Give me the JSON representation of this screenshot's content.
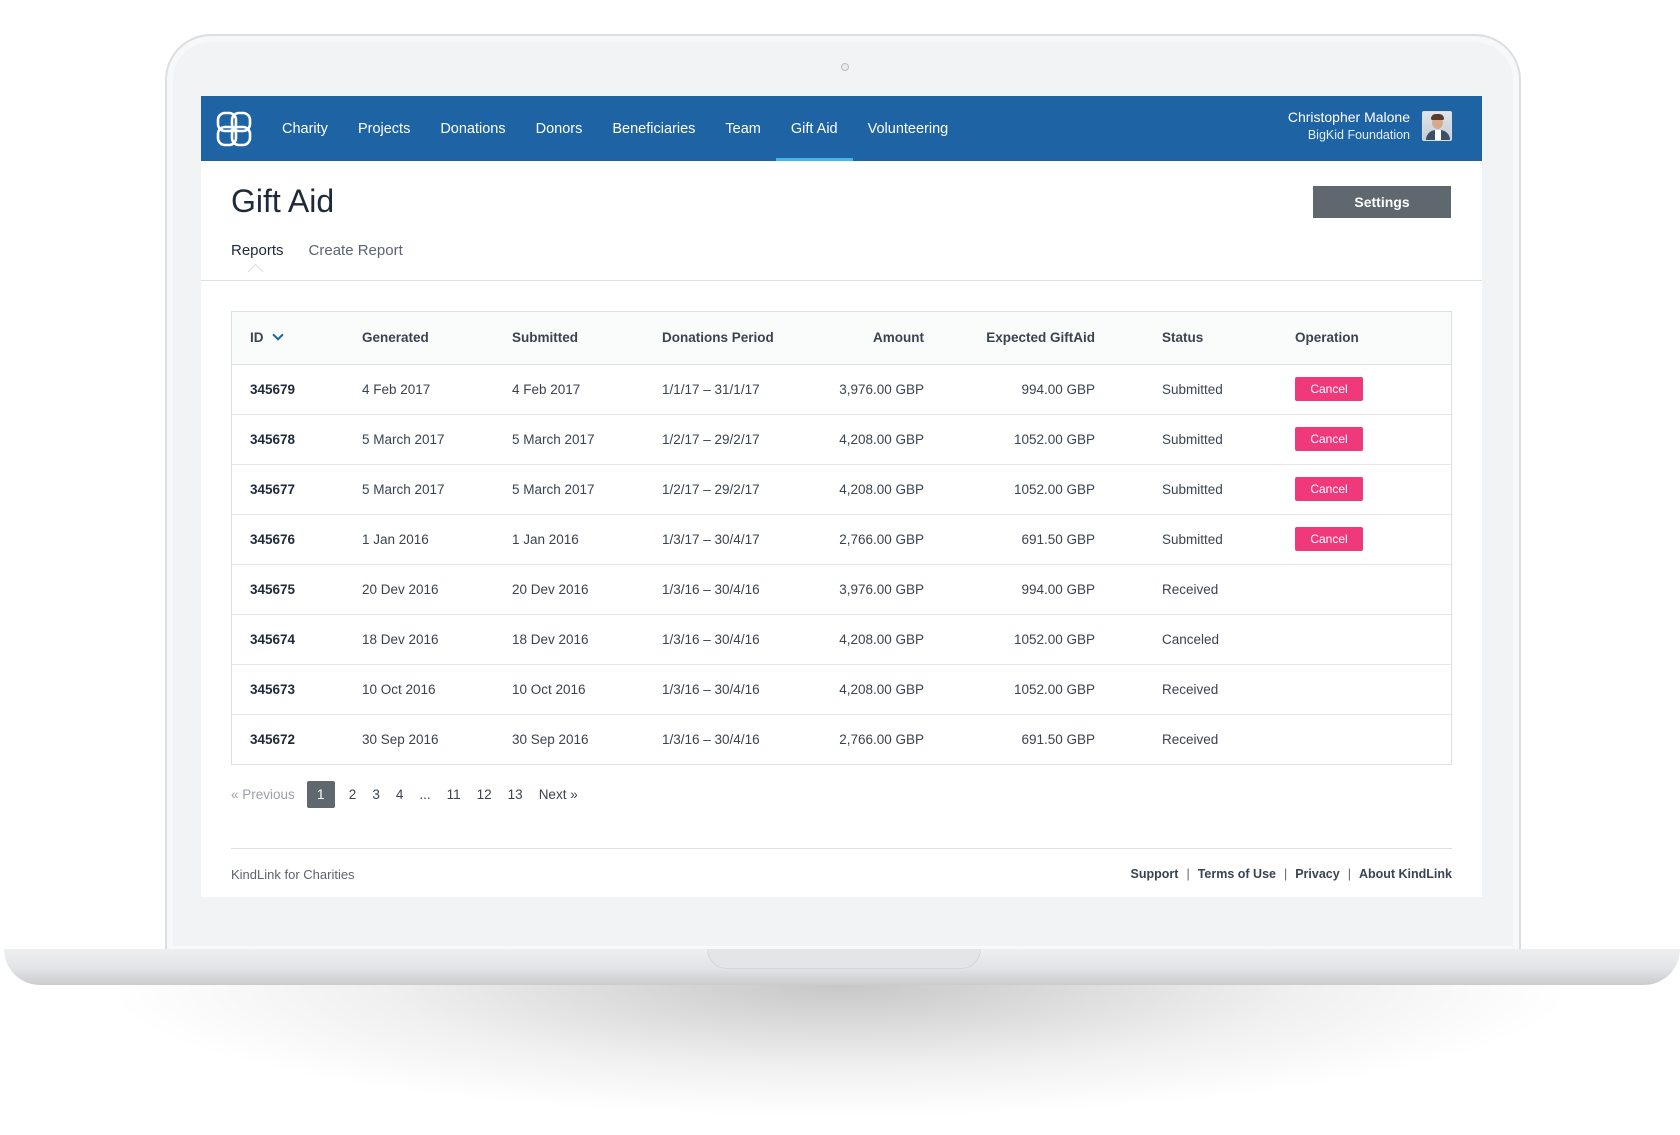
{
  "brand": {
    "accent": "#1e64a5",
    "active_indicator": "#3fb7ea",
    "cancel_color": "#f0397a",
    "button_gray": "#5f676f"
  },
  "nav": {
    "items": [
      {
        "label": "Charity"
      },
      {
        "label": "Projects"
      },
      {
        "label": "Donations"
      },
      {
        "label": "Donors"
      },
      {
        "label": "Beneficiaries"
      },
      {
        "label": "Team"
      },
      {
        "label": "Gift Aid",
        "active": true
      },
      {
        "label": "Volunteering"
      }
    ],
    "user": {
      "name": "Christopher Malone",
      "organization": "BigKid Foundation"
    }
  },
  "page": {
    "title": "Gift Aid",
    "settings_label": "Settings",
    "tabs": [
      {
        "label": "Reports",
        "active": true
      },
      {
        "label": "Create Report"
      }
    ]
  },
  "table": {
    "columns": [
      "ID",
      "Generated",
      "Submitted",
      "Donations Period",
      "Amount",
      "Expected GiftAid",
      "Status",
      "Operation"
    ],
    "cancel_label": "Cancel",
    "rows": [
      {
        "id": "345679",
        "generated": "4 Feb 2017",
        "submitted": "4 Feb 2017",
        "period": "1/1/17 – 31/1/17",
        "amount": "3,976.00 GBP",
        "expected": "994.00 GBP",
        "status": "Submitted",
        "can_cancel": true
      },
      {
        "id": "345678",
        "generated": "5 March 2017",
        "submitted": "5 March 2017",
        "period": "1/2/17 – 29/2/17",
        "amount": "4,208.00 GBP",
        "expected": "1052.00 GBP",
        "status": "Submitted",
        "can_cancel": true
      },
      {
        "id": "345677",
        "generated": "5 March 2017",
        "submitted": "5 March 2017",
        "period": "1/2/17 – 29/2/17",
        "amount": "4,208.00 GBP",
        "expected": "1052.00 GBP",
        "status": "Submitted",
        "can_cancel": true
      },
      {
        "id": "345676",
        "generated": "1 Jan 2016",
        "submitted": "1 Jan 2016",
        "period": "1/3/17 – 30/4/17",
        "amount": "2,766.00 GBP",
        "expected": "691.50 GBP",
        "status": "Submitted",
        "can_cancel": true
      },
      {
        "id": "345675",
        "generated": "20 Dev 2016",
        "submitted": "20 Dev 2016",
        "period": "1/3/16 – 30/4/16",
        "amount": "3,976.00 GBP",
        "expected": "994.00 GBP",
        "status": "Received",
        "can_cancel": false
      },
      {
        "id": "345674",
        "generated": "18 Dev 2016",
        "submitted": "18 Dev 2016",
        "period": "1/3/16 – 30/4/16",
        "amount": "4,208.00 GBP",
        "expected": "1052.00 GBP",
        "status": "Canceled",
        "can_cancel": false
      },
      {
        "id": "345673",
        "generated": "10 Oct 2016",
        "submitted": "10 Oct 2016",
        "period": "1/3/16 – 30/4/16",
        "amount": "4,208.00 GBP",
        "expected": "1052.00 GBP",
        "status": "Received",
        "can_cancel": false
      },
      {
        "id": "345672",
        "generated": "30 Sep 2016",
        "submitted": "30 Sep 2016",
        "period": "1/3/16 – 30/4/16",
        "amount": "2,766.00 GBP",
        "expected": "691.50 GBP",
        "status": "Received",
        "can_cancel": false
      }
    ]
  },
  "pagination": {
    "previous": "« Previous",
    "pages": [
      "1",
      "2",
      "3",
      "4",
      "...",
      "11",
      "12",
      "13"
    ],
    "current": "1",
    "next": "Next »"
  },
  "footer": {
    "left": "KindLink for Charities",
    "links": [
      "Support",
      "Terms of Use",
      "Privacy",
      "About KindLink"
    ],
    "separator": "|"
  }
}
